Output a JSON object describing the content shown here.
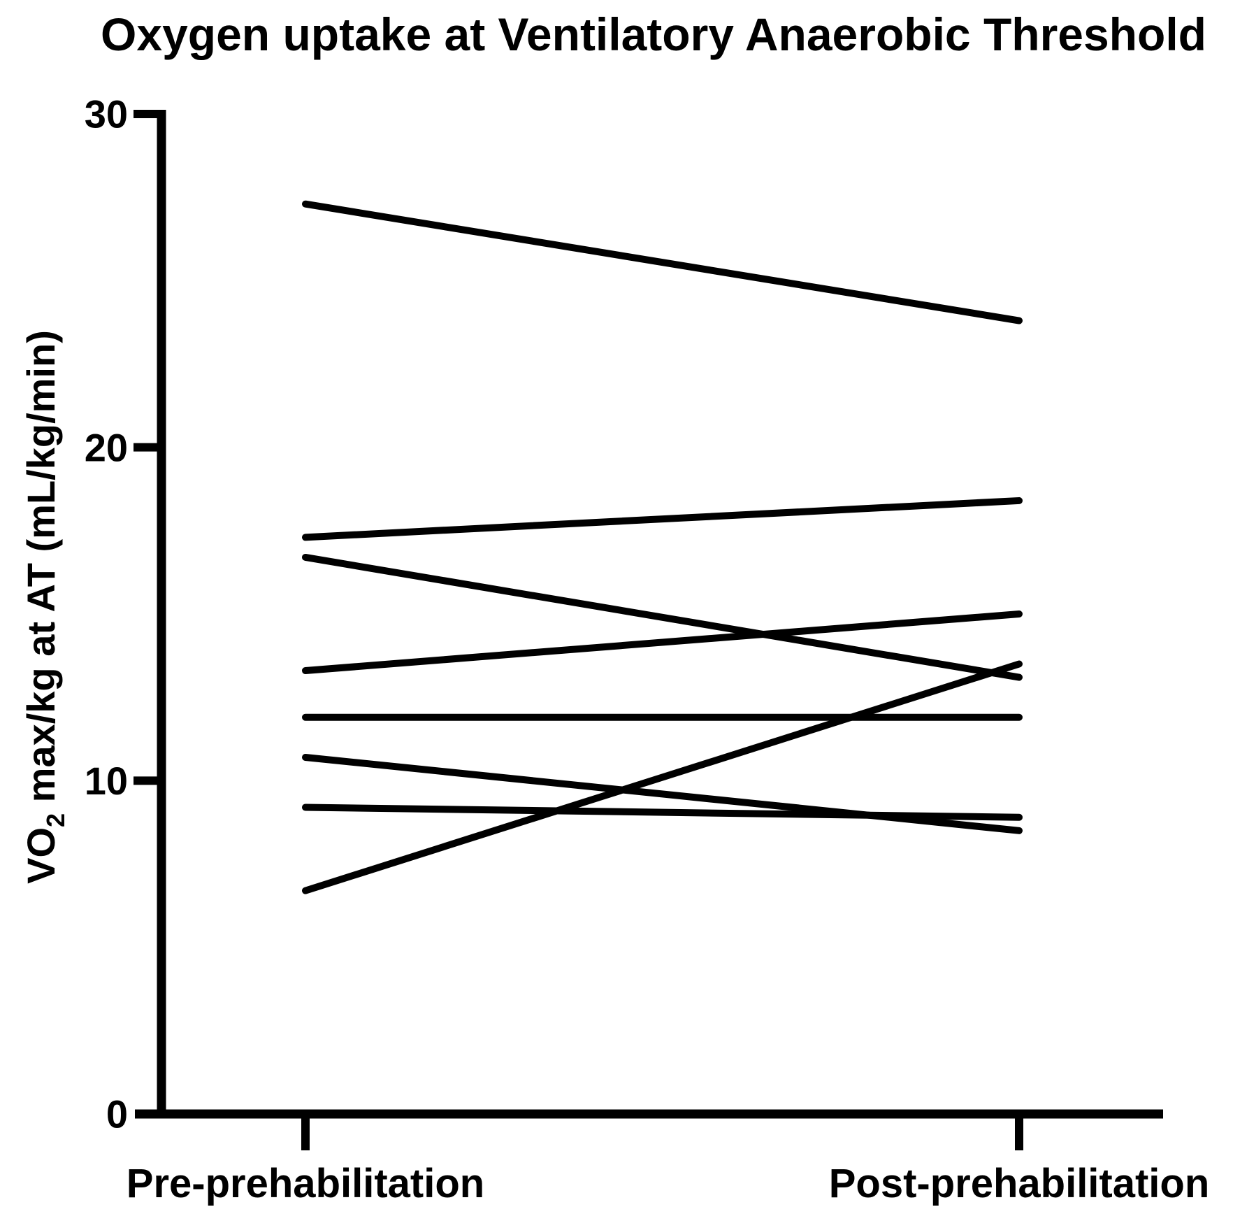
{
  "figure": {
    "background_color": "#ffffff",
    "foreground_color": "#000000"
  },
  "chart_data": {
    "type": "line",
    "subtype": "paired-slopegraph",
    "title": "Oxygen uptake at Ventilatory Anaerobic Threshold",
    "categories": [
      "Pre-prehabilitation",
      "Post-prehabilitation"
    ],
    "series": [
      {
        "values": [
          27.3,
          23.8
        ]
      },
      {
        "values": [
          17.3,
          18.4
        ]
      },
      {
        "values": [
          16.7,
          13.1
        ]
      },
      {
        "values": [
          13.3,
          15.0
        ]
      },
      {
        "values": [
          11.9,
          11.9
        ]
      },
      {
        "values": [
          10.7,
          8.5
        ]
      },
      {
        "values": [
          9.2,
          8.9
        ]
      },
      {
        "values": [
          6.7,
          13.5
        ]
      }
    ],
    "xlabel": "",
    "ylabel": "VO2 max/kg at AT (mL/kg/min)",
    "ylabel_parts": {
      "base": "VO",
      "subscript": "2",
      "rest": " max/kg at AT (mL/kg/min)"
    },
    "ylim": [
      0,
      30
    ],
    "yticks": [
      0,
      10,
      20,
      30
    ],
    "grid": false,
    "legend": false
  }
}
